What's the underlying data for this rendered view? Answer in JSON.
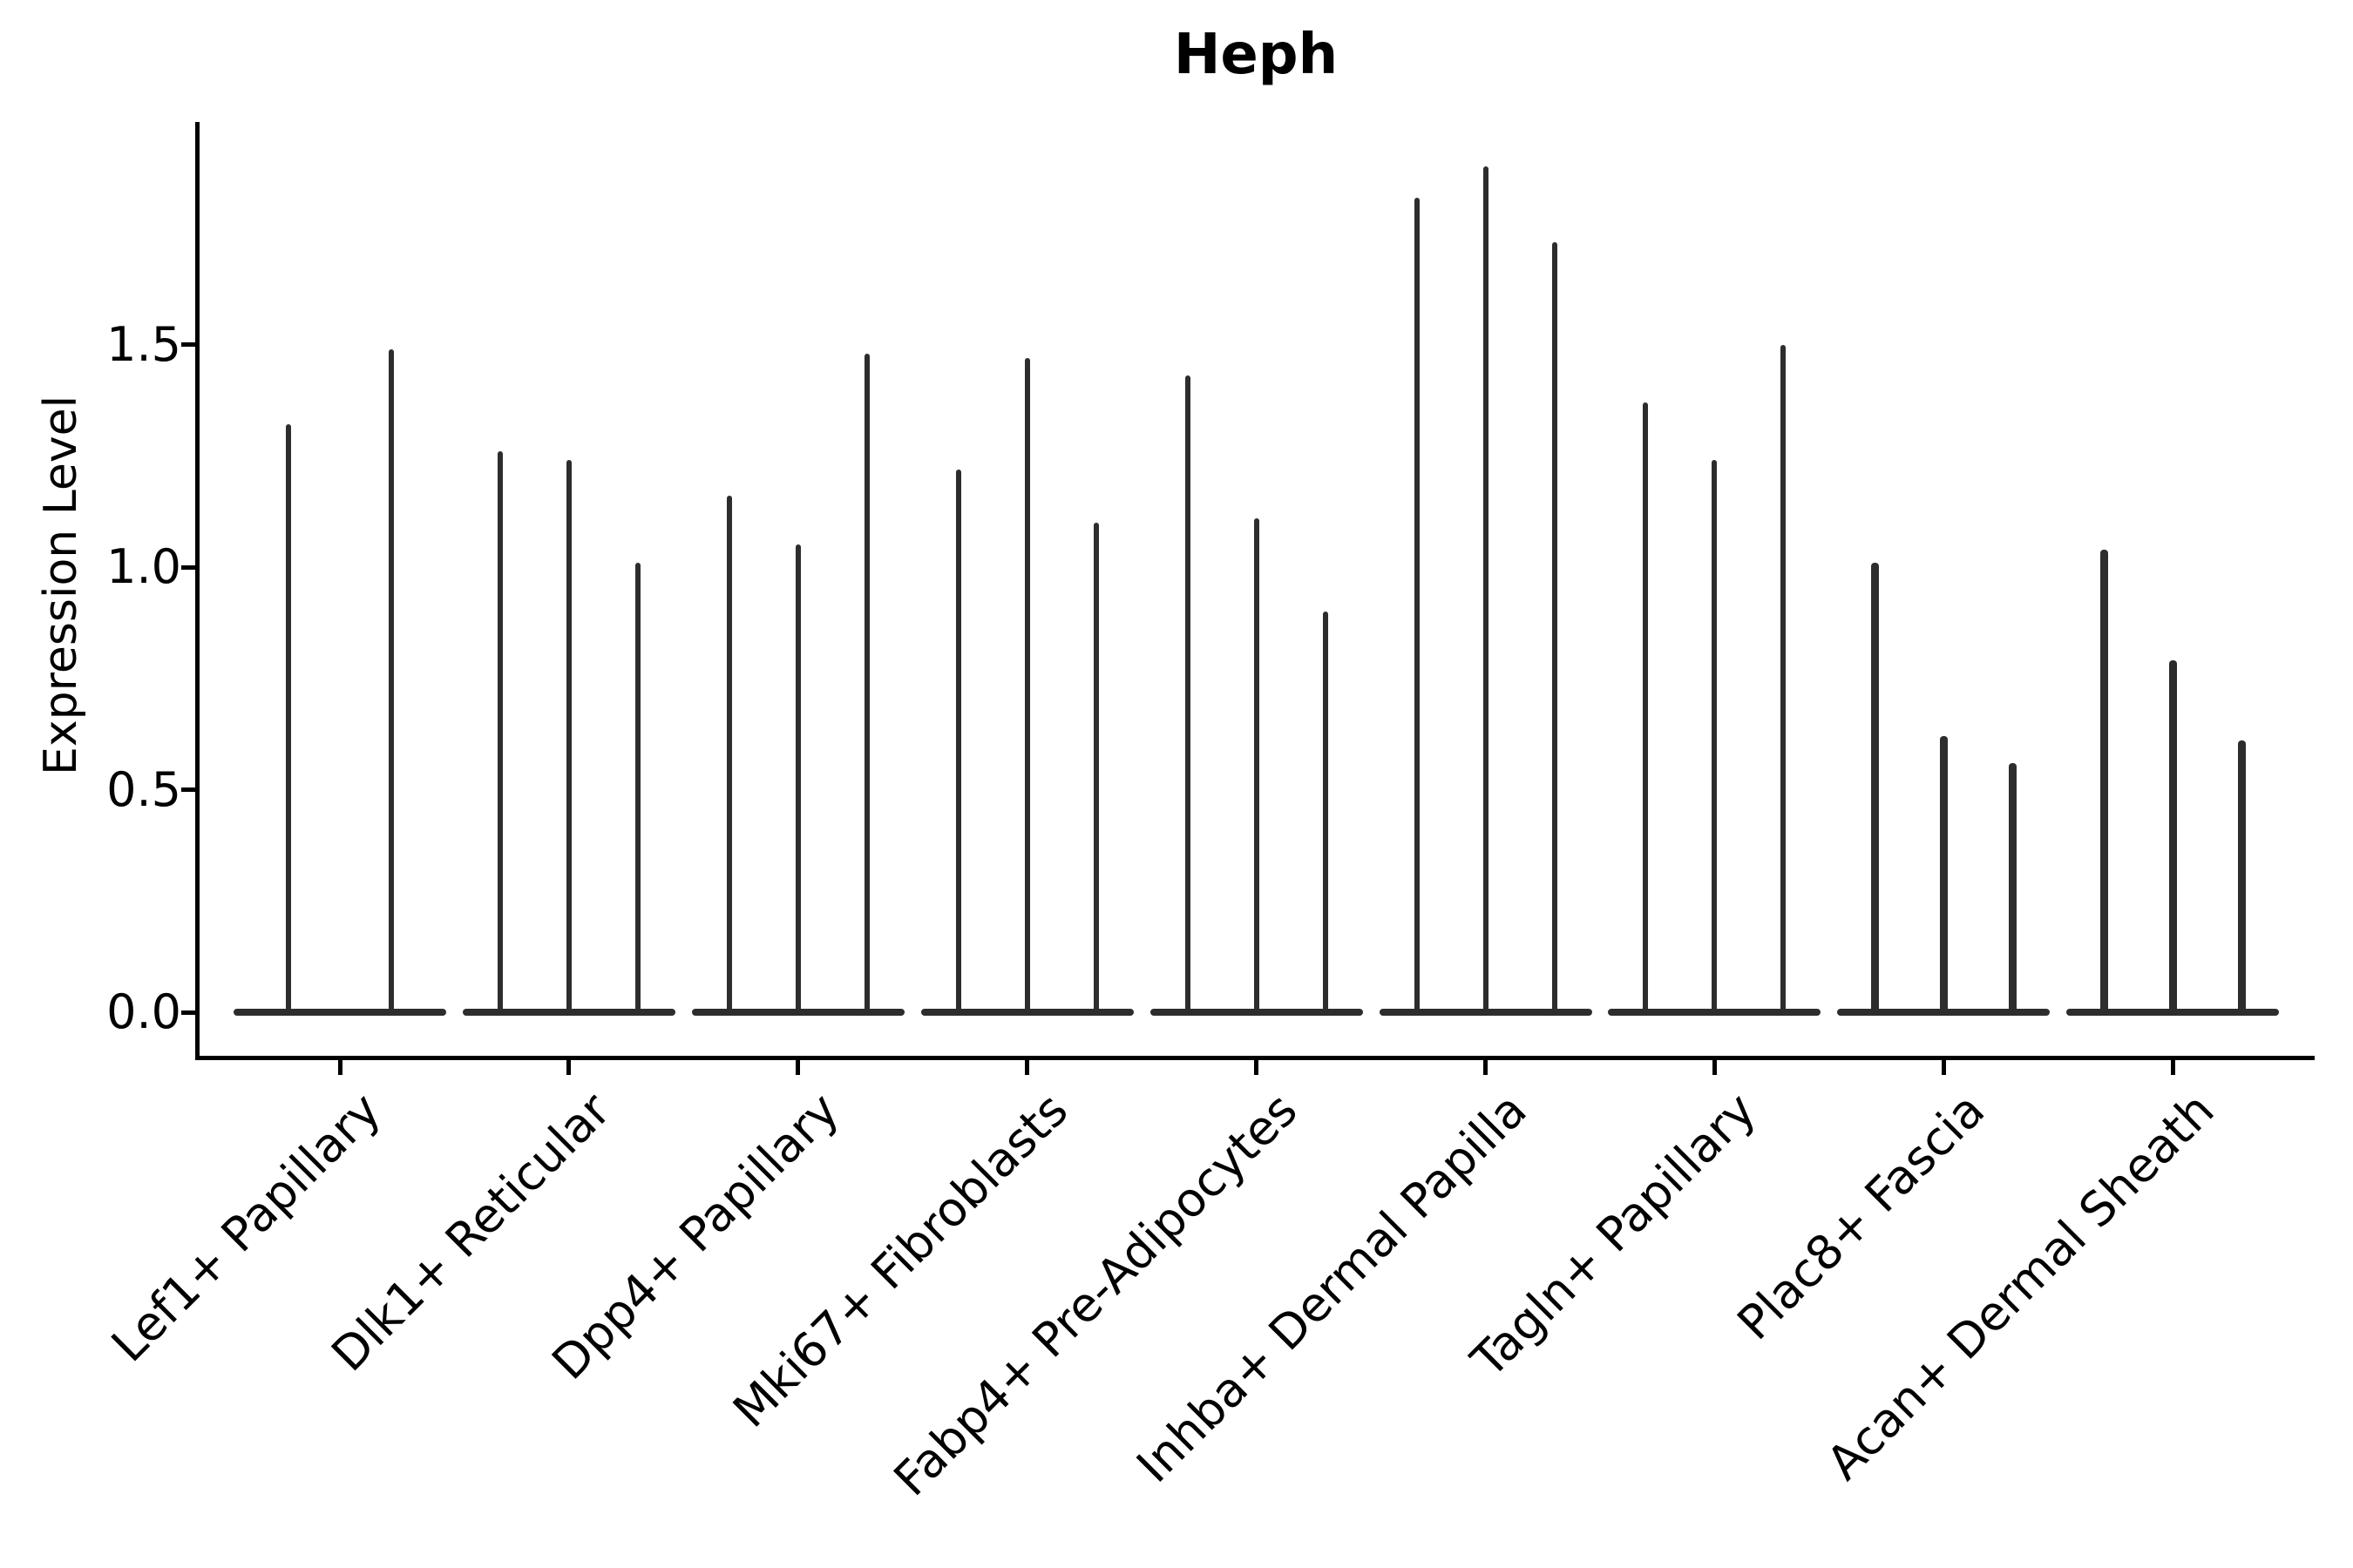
{
  "chart_data": {
    "type": "violin",
    "title": "Heph",
    "xlabel": "",
    "ylabel": "Expression Level",
    "ytick_labels": [
      "0.0",
      "0.5",
      "1.0",
      "1.5"
    ],
    "ytick_values": [
      0.0,
      0.5,
      1.0,
      1.5
    ],
    "ylim": [
      -0.12,
      2.0
    ],
    "grid": "off",
    "legend": "none",
    "data_color": "#2d2d2d",
    "axis_color": "#000000",
    "categories": [
      "Lef1+ Papillary",
      "Dlk1+ Reticular",
      "Dpp4+ Papillary",
      "Mki67+ Fibroblasts",
      "Fabp4+ Pre-Adipocytes",
      "Inhba+ Dermal Papilla",
      "Tagln+ Papillary",
      "Plac8+ Fascia",
      "Acan+ Dermal Sheath"
    ],
    "groups": [
      {
        "category": "Lef1+ Papillary",
        "violin_maxima": [
          1.32,
          1.49
        ]
      },
      {
        "category": "Dlk1+ Reticular",
        "violin_maxima": [
          1.26,
          1.24,
          1.01
        ]
      },
      {
        "category": "Dpp4+ Papillary",
        "violin_maxima": [
          1.16,
          1.05,
          1.48
        ]
      },
      {
        "category": "Mki67+ Fibroblasts",
        "violin_maxima": [
          1.22,
          1.47,
          1.1
        ]
      },
      {
        "category": "Fabp4+ Pre-Adipocytes",
        "violin_maxima": [
          1.43,
          1.11,
          0.9
        ]
      },
      {
        "category": "Inhba+ Dermal Papilla",
        "violin_maxima": [
          1.83,
          1.9,
          1.73
        ]
      },
      {
        "category": "Tagln+ Papillary",
        "violin_maxima": [
          1.37,
          1.24,
          1.5
        ]
      },
      {
        "category": "Plac8+ Fascia",
        "violin_maxima": [
          1.01,
          0.62,
          0.56
        ]
      },
      {
        "category": "Acan+ Dermal Sheath",
        "violin_maxima": [
          1.04,
          0.79,
          0.61
        ]
      }
    ],
    "violin_min": 0.0,
    "description": "Stacked-violin style expression plot; each category shows narrow violins whose spikes reach the listed maximum expression values, all with dense mass at 0."
  }
}
